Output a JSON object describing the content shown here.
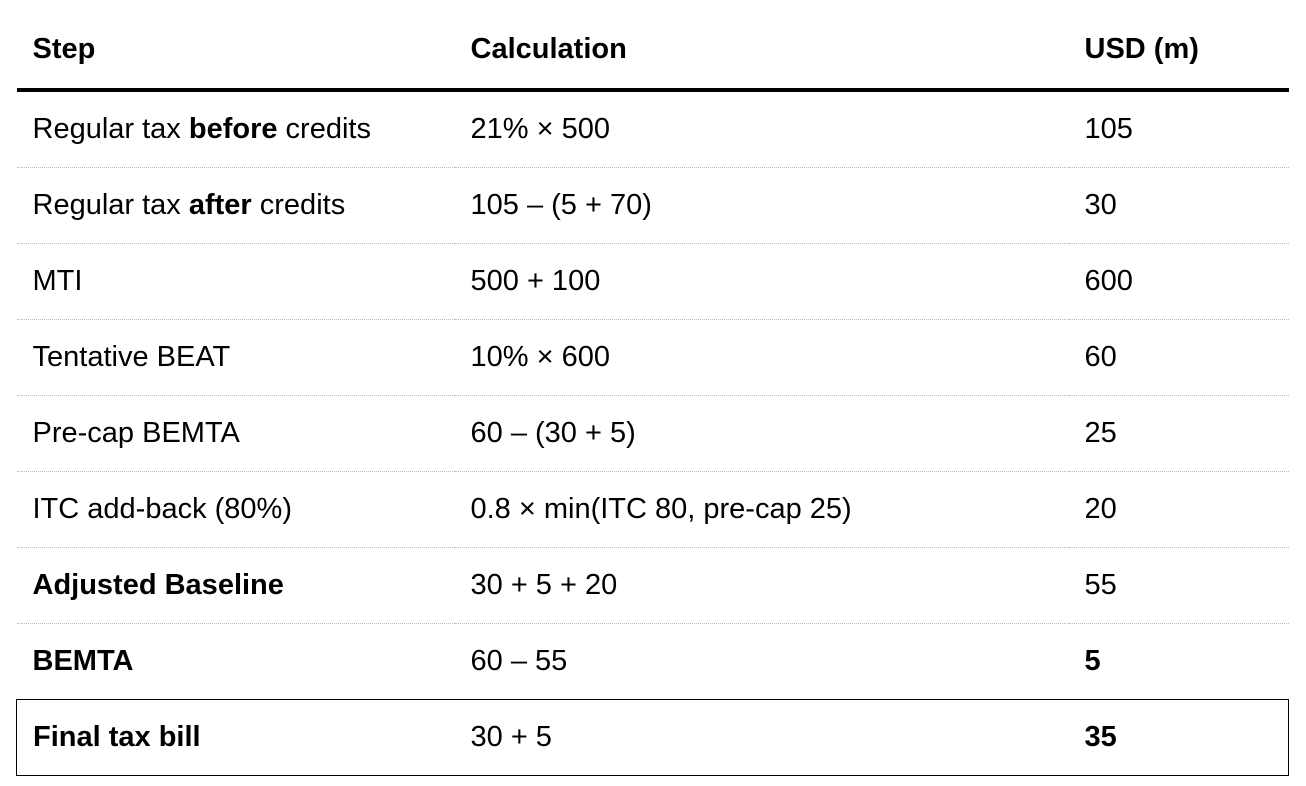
{
  "headers": {
    "step": "Step",
    "calculation": "Calculation",
    "usd": "USD (m)"
  },
  "rows": [
    {
      "step_pre": "Regular tax ",
      "step_bold": "before",
      "step_post": " credits",
      "calc": "21% × 500",
      "usd": "105"
    },
    {
      "step_pre": "Regular tax ",
      "step_bold": "after",
      "step_post": " credits",
      "calc": "105 – (5 + 70)",
      "usd": "30"
    },
    {
      "step": "MTI",
      "calc": "500 + 100",
      "usd": "600"
    },
    {
      "step": "Tentative BEAT",
      "calc": "10% × 600",
      "usd": "60"
    },
    {
      "step": "Pre-cap BEMTA",
      "calc": "60 – (30 + 5)",
      "usd": "25"
    },
    {
      "step": "ITC add-back (80%)",
      "calc": "0.8 × min(ITC 80, pre-cap 25)",
      "usd": "20"
    },
    {
      "step": "Adjusted Baseline",
      "calc": "30 + 5 + 20",
      "usd": "55"
    },
    {
      "step": "BEMTA",
      "calc": "60 – 55",
      "usd": "5"
    },
    {
      "step": "Final tax bill",
      "calc": "30 + 5",
      "usd": "35"
    }
  ]
}
